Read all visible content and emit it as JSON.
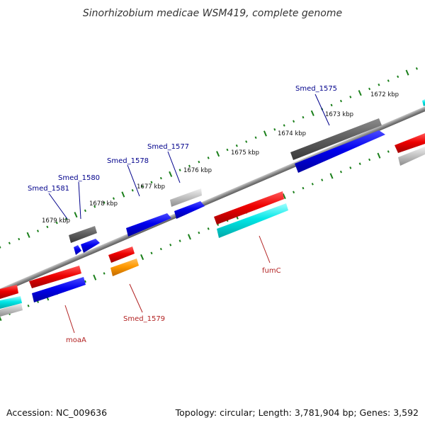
{
  "title": "Sinorhizobium medicae WSM419, complete genome",
  "footer": {
    "accession": "Accession: NC_009636",
    "summary": "Topology: circular; Length: 3,781,904 bp; Genes: 3,592"
  },
  "colors": {
    "forward_label": "#00008b",
    "reverse_label": "#b22222",
    "tick": "#1a7f1a",
    "backbone": "#888888"
  },
  "kbp_labels": [
    "1679 kbp",
    "1678 kbp",
    "1677 kbp",
    "1676 kbp",
    "1675 kbp",
    "1674 kbp",
    "1673 kbp",
    "1672 kbp"
  ],
  "genes": {
    "forward": [
      {
        "label": "Smed_1581"
      },
      {
        "label": "Smed_1580"
      },
      {
        "label": "Smed_1578"
      },
      {
        "label": "Smed_1577"
      },
      {
        "label": "Smed_1575"
      }
    ],
    "reverse": [
      {
        "label": "moaA"
      },
      {
        "label": "Smed_1579"
      },
      {
        "label": "fumC"
      }
    ]
  }
}
